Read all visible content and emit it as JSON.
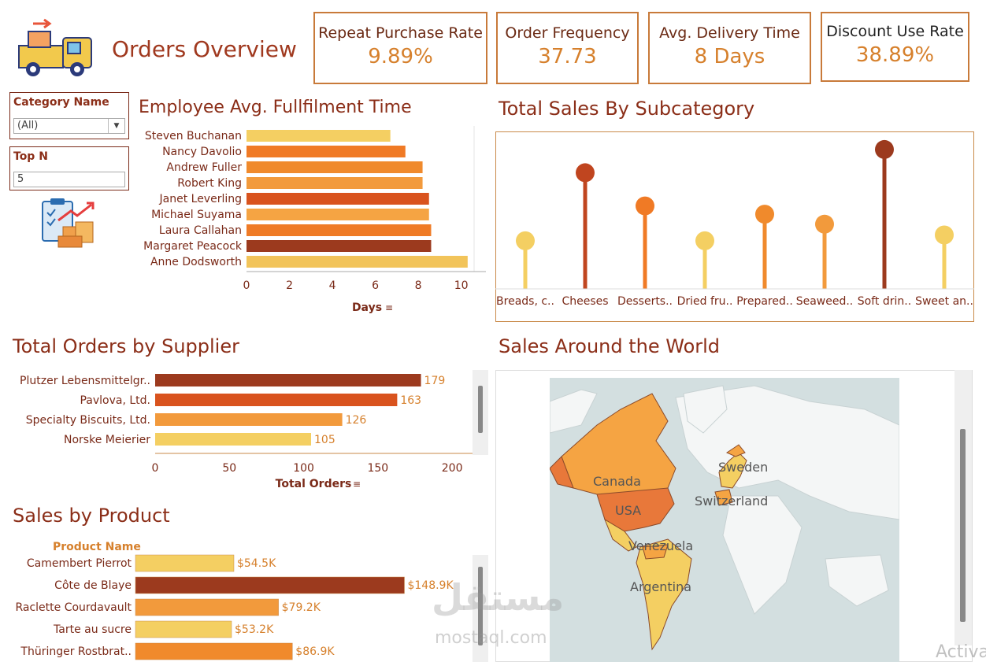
{
  "header": {
    "title": "Orders Overview"
  },
  "kpis": [
    {
      "label": "Repeat Purchase Rate",
      "value": "9.89%"
    },
    {
      "label": "Order Frequency",
      "value": "37.73"
    },
    {
      "label": "Avg. Delivery Time",
      "value": "8 Days"
    },
    {
      "label": "Discount Use Rate",
      "value": "38.89%"
    }
  ],
  "filters": {
    "category": {
      "label": "Category Name",
      "value": "(All)"
    },
    "topn": {
      "label": "Top N",
      "value": "5"
    }
  },
  "sections": {
    "employee": "Employee Avg. Fullfilment Time",
    "subcategory": "Total Sales By Subcategory",
    "supplier": "Total Orders by Supplier",
    "world": "Sales Around the World",
    "product": "Sales by Product"
  },
  "map_labels": [
    "Canada",
    "USA",
    "Venezuela",
    "Argentina",
    "Sweden",
    "Switzerland"
  ],
  "watermark": {
    "arabic": "مستقل",
    "latin": "mostaql.com",
    "corner": "Activa"
  },
  "colors": {
    "light": "#f4cf62",
    "orange": "#f08a2c",
    "dark_orange": "#d9531e",
    "brown": "#9c3a1e",
    "title": "#8b2e18"
  },
  "chart_data": [
    {
      "id": "employee",
      "type": "bar",
      "title": "Employee Avg. Fullfilment Time",
      "xlabel": "Days",
      "categories": [
        "Steven Buchanan",
        "Nancy Davolio",
        "Andrew Fuller",
        "Robert King",
        "Janet Leverling",
        "Michael Suyama",
        "Laura Callahan",
        "Margaret Peacock",
        "Anne Dodsworth"
      ],
      "values": [
        6.7,
        7.4,
        8.2,
        8.2,
        8.5,
        8.5,
        8.6,
        8.6,
        10.3
      ],
      "colors": [
        "#f4cf62",
        "#f07a25",
        "#f08a2c",
        "#f29a3c",
        "#d9531e",
        "#f5a443",
        "#ef7b26",
        "#9c3a1e",
        "#f2c45a"
      ],
      "xlim": [
        0,
        10.6
      ],
      "xticks": [
        0,
        2,
        4,
        6,
        8,
        10
      ]
    },
    {
      "id": "subcategory",
      "type": "lollipop",
      "title": "Total Sales By Subcategory",
      "categories": [
        "Breads, c..",
        "Cheeses",
        "Desserts..",
        "Dried fru..",
        "Prepared..",
        "Seaweed..",
        "Soft drin..",
        "Sweet an.."
      ],
      "values": [
        58,
        140,
        100,
        58,
        90,
        78,
        168,
        65
      ],
      "colors": [
        "#f4cf62",
        "#c0451f",
        "#f07a25",
        "#f4cf62",
        "#f08a2c",
        "#f29a3c",
        "#9c3a1e",
        "#f4cf62"
      ],
      "ylim": [
        0,
        185
      ]
    },
    {
      "id": "supplier",
      "type": "bar",
      "title": "Total Orders by Supplier",
      "xlabel": "Total Orders",
      "categories": [
        "Plutzer Lebensmittelgr..",
        "Pavlova, Ltd.",
        "Specialty Biscuits, Ltd.",
        "Norske Meierier"
      ],
      "values": [
        179,
        163,
        126,
        105
      ],
      "colors": [
        "#9c3a1e",
        "#d9531e",
        "#f29a3c",
        "#f4cf62"
      ],
      "xlim": [
        0,
        210
      ],
      "xticks": [
        0,
        50,
        100,
        150,
        200
      ]
    },
    {
      "id": "product",
      "type": "bar",
      "title": "Sales by Product",
      "header": "Product Name",
      "categories": [
        "Camembert Pierrot",
        "Côte de Blaye",
        "Raclette Courdavault",
        "Tarte au sucre",
        "Thüringer Rostbrat.."
      ],
      "values": [
        54.5,
        148.9,
        79.2,
        53.2,
        86.9
      ],
      "labels": [
        "$54.5K",
        "$148.9K",
        "$79.2K",
        "$53.2K",
        "$86.9K"
      ],
      "colors": [
        "#f4cf62",
        "#9c3a1e",
        "#f29a3c",
        "#f4cf62",
        "#f08a2c"
      ],
      "xlim": [
        0,
        150
      ]
    }
  ]
}
